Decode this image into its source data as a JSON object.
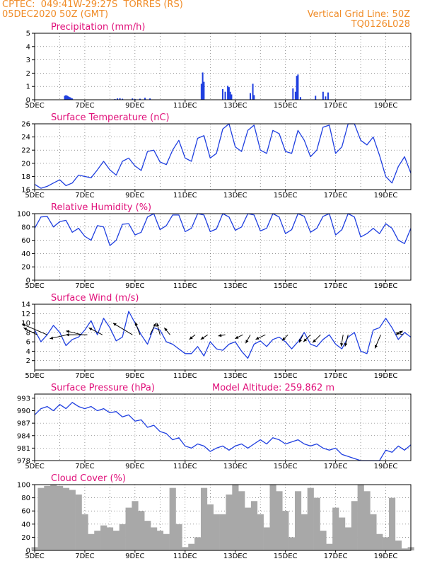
{
  "header": {
    "line1": "CPTEC:  049:41W-29:27S  TORRES (RS)",
    "line2": "05DEC2020 50Z (GMT)",
    "grid_note": "Vertical Grid Line: 50Z",
    "run_id": "TQ0126L028"
  },
  "colors": {
    "header_text": "#f08c28",
    "panel_title": "#e0107a",
    "series_line": "#1f3fe0",
    "cloud_fill": "#a8a8a8",
    "wind_arrow": "#000000"
  },
  "chart_data": [
    {
      "type": "bar",
      "title": "Precipitation (mm/h)",
      "x_tick_labels": [
        "5DEC",
        "7DEC",
        "9DEC",
        "11DEC",
        "13DEC",
        "15DEC",
        "17DEC",
        "19DEC"
      ],
      "x_range_days": [
        5,
        20
      ],
      "ylim": [
        0,
        5
      ],
      "y_ticks": [
        0,
        1,
        2,
        3,
        4,
        5
      ],
      "grid": true,
      "x": [
        6.2,
        6.25,
        6.3,
        6.35,
        6.4,
        6.45,
        6.5,
        8.2,
        8.3,
        8.4,
        8.5,
        8.9,
        9.0,
        9.2,
        9.4,
        9.6,
        11.65,
        11.7,
        11.75,
        12.5,
        12.6,
        12.7,
        12.75,
        12.8,
        12.85,
        13.6,
        13.7,
        13.75,
        15.3,
        15.4,
        15.45,
        15.5,
        15.6,
        16.2,
        16.5,
        16.6,
        16.7
      ],
      "values": [
        0.3,
        0.35,
        0.3,
        0.25,
        0.2,
        0.15,
        0.1,
        0.05,
        0.1,
        0.12,
        0.08,
        0.1,
        0.05,
        0.08,
        0.15,
        0.1,
        1.2,
        2.05,
        1.35,
        0.8,
        0.6,
        1.05,
        0.95,
        0.6,
        0.4,
        0.5,
        1.2,
        0.35,
        0.85,
        0.6,
        1.8,
        1.9,
        0.2,
        0.3,
        0.6,
        0.25,
        0.55
      ]
    },
    {
      "type": "line",
      "title": "Surface Temperature (nC)",
      "x_tick_labels": [
        "5DEC",
        "7DEC",
        "9DEC",
        "11DEC",
        "13DEC",
        "15DEC",
        "17DEC",
        "19DEC"
      ],
      "x_range_days": [
        5,
        20
      ],
      "ylim": [
        16,
        26
      ],
      "y_ticks": [
        16,
        18,
        20,
        22,
        24,
        26
      ],
      "grid": true,
      "x": [
        5.0,
        5.25,
        5.5,
        5.75,
        6.0,
        6.25,
        6.5,
        6.75,
        7.0,
        7.25,
        7.5,
        7.75,
        8.0,
        8.25,
        8.5,
        8.75,
        9.0,
        9.25,
        9.5,
        9.75,
        10.0,
        10.25,
        10.5,
        10.75,
        11.0,
        11.25,
        11.5,
        11.75,
        12.0,
        12.25,
        12.5,
        12.75,
        13.0,
        13.25,
        13.5,
        13.75,
        14.0,
        14.25,
        14.5,
        14.75,
        15.0,
        15.25,
        15.5,
        15.75,
        16.0,
        16.25,
        16.5,
        16.75,
        17.0,
        17.25,
        17.5,
        17.75,
        18.0,
        18.25,
        18.5,
        18.75,
        19.0,
        19.25,
        19.5,
        19.75,
        20.0
      ],
      "values": [
        16.8,
        16.2,
        16.5,
        17.0,
        17.5,
        16.6,
        17.0,
        18.2,
        18.0,
        17.8,
        19.0,
        20.3,
        19.0,
        18.2,
        20.3,
        20.8,
        19.6,
        18.9,
        21.8,
        22.0,
        20.2,
        19.8,
        22.0,
        23.5,
        20.8,
        20.3,
        23.8,
        24.2,
        20.8,
        21.5,
        25.2,
        26.0,
        22.5,
        21.8,
        25.0,
        25.8,
        22.0,
        21.5,
        25.0,
        24.5,
        21.8,
        21.5,
        25.0,
        23.5,
        21.0,
        22.0,
        25.5,
        25.8,
        21.5,
        22.5,
        26.0,
        26.2,
        23.5,
        22.8,
        24.0,
        21.2,
        18.0,
        17.0,
        19.5,
        21.0,
        18.5
      ]
    },
    {
      "type": "line",
      "title": "Relative Humidity (%)",
      "x_tick_labels": [
        "5DEC",
        "7DEC",
        "9DEC",
        "11DEC",
        "13DEC",
        "15DEC",
        "17DEC",
        "19DEC"
      ],
      "x_range_days": [
        5,
        20
      ],
      "ylim": [
        0,
        100
      ],
      "y_ticks": [
        0,
        20,
        40,
        60,
        80,
        100
      ],
      "grid": true,
      "x": [
        5.0,
        5.25,
        5.5,
        5.75,
        6.0,
        6.25,
        6.5,
        6.75,
        7.0,
        7.25,
        7.5,
        7.75,
        8.0,
        8.25,
        8.5,
        8.75,
        9.0,
        9.25,
        9.5,
        9.75,
        10.0,
        10.25,
        10.5,
        10.75,
        11.0,
        11.25,
        11.5,
        11.75,
        12.0,
        12.25,
        12.5,
        12.75,
        13.0,
        13.25,
        13.5,
        13.75,
        14.0,
        14.25,
        14.5,
        14.75,
        15.0,
        15.25,
        15.5,
        15.75,
        16.0,
        16.25,
        16.5,
        16.75,
        17.0,
        17.25,
        17.5,
        17.75,
        18.0,
        18.25,
        18.5,
        18.75,
        19.0,
        19.25,
        19.5,
        19.75,
        20.0
      ],
      "values": [
        78,
        95,
        96,
        80,
        88,
        90,
        72,
        78,
        66,
        60,
        82,
        80,
        52,
        60,
        84,
        85,
        68,
        72,
        95,
        100,
        76,
        82,
        98,
        98,
        73,
        78,
        100,
        98,
        73,
        77,
        100,
        95,
        75,
        80,
        100,
        98,
        74,
        78,
        100,
        95,
        70,
        76,
        100,
        96,
        72,
        78,
        96,
        100,
        68,
        76,
        100,
        95,
        65,
        70,
        78,
        70,
        85,
        78,
        60,
        55,
        78
      ]
    },
    {
      "type": "line",
      "title": "Surface Wind (m/s)",
      "x_tick_labels": [
        "5DEC",
        "7DEC",
        "9DEC",
        "11DEC",
        "13DEC",
        "15DEC",
        "17DEC",
        "19DEC"
      ],
      "x_range_days": [
        5,
        20
      ],
      "ylim": [
        0,
        14
      ],
      "y_ticks": [
        2,
        4,
        6,
        8,
        10,
        12,
        14
      ],
      "grid": true,
      "x": [
        5.0,
        5.25,
        5.5,
        5.75,
        6.0,
        6.25,
        6.5,
        6.75,
        7.0,
        7.25,
        7.5,
        7.75,
        8.0,
        8.25,
        8.5,
        8.75,
        9.0,
        9.25,
        9.5,
        9.75,
        10.0,
        10.25,
        10.5,
        10.75,
        11.0,
        11.25,
        11.5,
        11.75,
        12.0,
        12.25,
        12.5,
        12.75,
        13.0,
        13.25,
        13.5,
        13.75,
        14.0,
        14.25,
        14.5,
        14.75,
        15.0,
        15.25,
        15.5,
        15.75,
        16.0,
        16.25,
        16.5,
        16.75,
        17.0,
        17.25,
        17.5,
        17.75,
        18.0,
        18.25,
        18.5,
        18.75,
        19.0,
        19.25,
        19.5,
        19.75,
        20.0
      ],
      "values": [
        8.5,
        6.0,
        7.5,
        9.5,
        8.0,
        5.2,
        6.5,
        7.0,
        8.5,
        10.5,
        7.5,
        11.0,
        9.0,
        6.2,
        7.0,
        12.5,
        10.0,
        7.5,
        5.5,
        9.0,
        8.5,
        6.0,
        5.5,
        4.5,
        3.5,
        3.5,
        5.0,
        3.0,
        6.0,
        4.5,
        4.2,
        5.5,
        6.0,
        4.0,
        2.5,
        5.5,
        6.2,
        5.0,
        6.5,
        7.0,
        6.0,
        4.5,
        6.0,
        8.0,
        5.5,
        5.0,
        6.5,
        7.5,
        5.5,
        4.5,
        7.0,
        8.0,
        4.0,
        3.5,
        8.5,
        9.0,
        11.0,
        9.0,
        6.5,
        8.0,
        7.0
      ],
      "wind_arrows": [
        {
          "day": 5.1,
          "u": 3.5,
          "v": -1.8
        },
        {
          "day": 5.5,
          "u": 6.5,
          "v": -2.8
        },
        {
          "day": 6.3,
          "u": 4.5,
          "v": 1.0
        },
        {
          "day": 6.9,
          "u": 4.2,
          "v": -1.0
        },
        {
          "day": 7.1,
          "u": 5.5,
          "v": 0.0
        },
        {
          "day": 7.7,
          "u": 3.5,
          "v": -1.8
        },
        {
          "day": 8.9,
          "u": 5.0,
          "v": -3.0
        },
        {
          "day": 9.2,
          "u": 1.2,
          "v": -3.2
        },
        {
          "day": 9.6,
          "u": -1.5,
          "v": -3.0
        },
        {
          "day": 10.0,
          "u": 0.8,
          "v": -3.0
        },
        {
          "day": 10.4,
          "u": 1.5,
          "v": -1.8
        },
        {
          "day": 11.4,
          "u": 1.5,
          "v": 1.2
        },
        {
          "day": 11.9,
          "u": 1.8,
          "v": 1.2
        },
        {
          "day": 12.6,
          "u": 1.8,
          "v": 0.3
        },
        {
          "day": 13.3,
          "u": 2.0,
          "v": 1.0
        },
        {
          "day": 13.6,
          "u": 1.2,
          "v": 2.2
        },
        {
          "day": 14.2,
          "u": 2.5,
          "v": 1.2
        },
        {
          "day": 15.1,
          "u": 1.5,
          "v": 1.5
        },
        {
          "day": 15.7,
          "u": 1.0,
          "v": 2.0
        },
        {
          "day": 16.0,
          "u": 1.8,
          "v": 1.8
        },
        {
          "day": 16.4,
          "u": 2.0,
          "v": 2.0
        },
        {
          "day": 17.3,
          "u": 0.5,
          "v": 3.0
        },
        {
          "day": 17.5,
          "u": 0.8,
          "v": 3.0
        },
        {
          "day": 18.8,
          "u": 1.5,
          "v": 3.5
        },
        {
          "day": 19.4,
          "u": -1.8,
          "v": -1.0
        },
        {
          "day": 19.7,
          "u": 2.0,
          "v": -0.5
        }
      ]
    },
    {
      "type": "line",
      "title": "Surface Pressure (hPa)",
      "annotation": "Model Altitude: 259.862 m",
      "x_tick_labels": [
        "5DEC",
        "7DEC",
        "9DEC",
        "11DEC",
        "13DEC",
        "15DEC",
        "17DEC",
        "19DEC"
      ],
      "x_range_days": [
        5,
        20
      ],
      "ylim": [
        978,
        994
      ],
      "y_ticks": [
        978,
        981,
        984,
        987,
        990,
        993
      ],
      "grid": true,
      "x": [
        5.0,
        5.25,
        5.5,
        5.75,
        6.0,
        6.25,
        6.5,
        6.75,
        7.0,
        7.25,
        7.5,
        7.75,
        8.0,
        8.25,
        8.5,
        8.75,
        9.0,
        9.25,
        9.5,
        9.75,
        10.0,
        10.25,
        10.5,
        10.75,
        11.0,
        11.25,
        11.5,
        11.75,
        12.0,
        12.25,
        12.5,
        12.75,
        13.0,
        13.25,
        13.5,
        13.75,
        14.0,
        14.25,
        14.5,
        14.75,
        15.0,
        15.25,
        15.5,
        15.75,
        16.0,
        16.25,
        16.5,
        16.75,
        17.0,
        17.25,
        17.5,
        17.75,
        18.0,
        18.25,
        18.5,
        18.75,
        19.0,
        19.25,
        19.5,
        19.75,
        20.0
      ],
      "values": [
        989.0,
        990.5,
        991.0,
        990.0,
        991.5,
        990.5,
        992.0,
        991.0,
        990.5,
        991.0,
        990.0,
        990.5,
        989.5,
        989.8,
        988.5,
        989.0,
        987.5,
        987.8,
        986.0,
        986.5,
        985.0,
        984.5,
        983.0,
        983.5,
        981.5,
        981.0,
        982.0,
        981.5,
        980.2,
        981.0,
        981.5,
        980.5,
        981.5,
        982.0,
        981.0,
        982.0,
        983.0,
        982.0,
        983.5,
        983.0,
        982.0,
        982.5,
        983.0,
        982.0,
        981.5,
        982.0,
        981.0,
        980.5,
        981.0,
        979.5,
        979.0,
        978.5,
        977.8,
        977.5,
        977.8,
        978.0,
        980.5,
        980.0,
        981.5,
        980.5,
        981.8
      ]
    },
    {
      "type": "bar",
      "title": "Cloud Cover (%)",
      "x_tick_labels": [
        "5DEC",
        "7DEC",
        "9DEC",
        "11DEC",
        "13DEC",
        "15DEC",
        "17DEC",
        "19DEC"
      ],
      "x_range_days": [
        5,
        20
      ],
      "ylim": [
        0,
        100
      ],
      "y_ticks": [
        0,
        20,
        40,
        60,
        80,
        100
      ],
      "grid": true,
      "x": [
        5.0,
        5.25,
        5.5,
        5.75,
        6.0,
        6.25,
        6.5,
        6.75,
        7.0,
        7.25,
        7.5,
        7.75,
        8.0,
        8.25,
        8.5,
        8.75,
        9.0,
        9.25,
        9.5,
        9.75,
        10.0,
        10.25,
        10.5,
        10.75,
        11.0,
        11.25,
        11.5,
        11.75,
        12.0,
        12.25,
        12.5,
        12.75,
        13.0,
        13.25,
        13.5,
        13.75,
        14.0,
        14.25,
        14.5,
        14.75,
        15.0,
        15.25,
        15.5,
        15.75,
        16.0,
        16.25,
        16.5,
        16.75,
        17.0,
        17.25,
        17.5,
        17.75,
        18.0,
        18.25,
        18.5,
        18.75,
        19.0,
        19.25,
        19.5,
        19.75,
        20.0
      ],
      "values": [
        5,
        95,
        98,
        100,
        98,
        95,
        92,
        85,
        55,
        25,
        30,
        38,
        35,
        30,
        40,
        65,
        75,
        60,
        45,
        35,
        30,
        25,
        95,
        40,
        5,
        10,
        20,
        95,
        70,
        55,
        55,
        85,
        100,
        90,
        65,
        75,
        55,
        35,
        100,
        90,
        60,
        20,
        90,
        55,
        95,
        80,
        30,
        10,
        65,
        50,
        35,
        75,
        100,
        90,
        55,
        25,
        20,
        80,
        15,
        3,
        5
      ]
    }
  ]
}
